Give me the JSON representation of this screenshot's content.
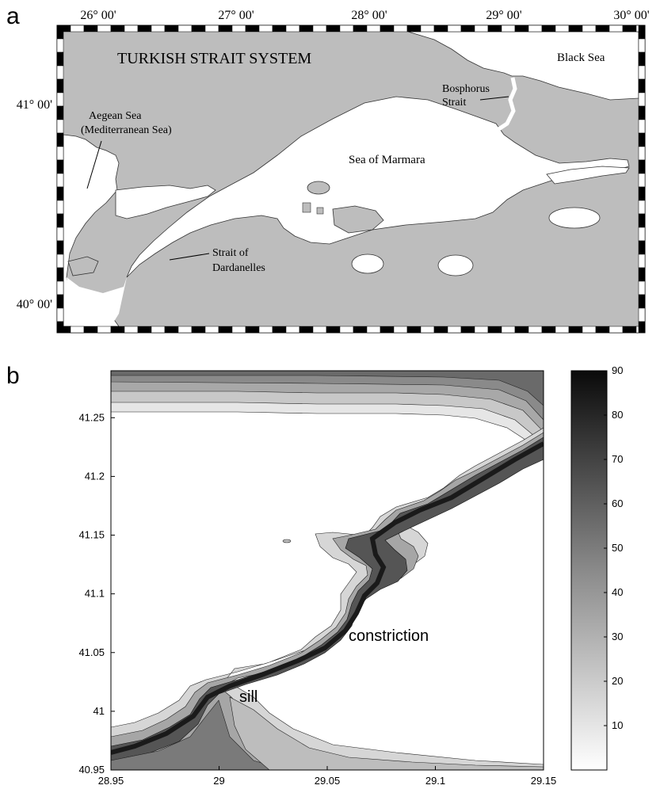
{
  "figure": {
    "panel_a_letter": "a",
    "panel_b_letter": "b"
  },
  "map_a": {
    "title": "TURKISH STRAIT SYSTEM",
    "longitude_ticks": [
      "26° 00'",
      "27° 00'",
      "28° 00'",
      "29° 00'",
      "30° 00'"
    ],
    "latitude_ticks": [
      "41° 00'",
      "40° 00'"
    ],
    "labels": {
      "black_sea": "Black Sea",
      "bosphorus_line1": "Bosphorus",
      "bosphorus_line2": "Strait",
      "aegean_line1": "Aegean Sea",
      "aegean_line2": "(Mediterranean Sea)",
      "marmara": "Sea of Marmara",
      "dardanelles_line1": "Strait of",
      "dardanelles_line2": "Dardanelles"
    },
    "colors": {
      "land": "#bdbdbd",
      "water": "#ffffff",
      "frame": "#000000"
    }
  },
  "map_b": {
    "x_ticks": [
      "28.95",
      "29",
      "29.05",
      "29.1",
      "29.15"
    ],
    "y_ticks": [
      "40.95",
      "41",
      "41.05",
      "41.1",
      "41.15",
      "41.2",
      "41.25"
    ],
    "annotations": {
      "constriction": "constriction",
      "sill": "sill"
    },
    "colorbar": {
      "ticks": [
        "10",
        "20",
        "30",
        "40",
        "50",
        "60",
        "70",
        "80",
        "90"
      ],
      "min": 0,
      "max": 90
    }
  },
  "chart_data": {
    "type": "heatmap",
    "x_range": [
      28.95,
      29.15
    ],
    "y_range": [
      40.95,
      41.29
    ],
    "value_range": [
      0,
      90
    ],
    "xlabel": "",
    "ylabel": "",
    "colormap": "gray (white = shallow, black = deep)"
  }
}
